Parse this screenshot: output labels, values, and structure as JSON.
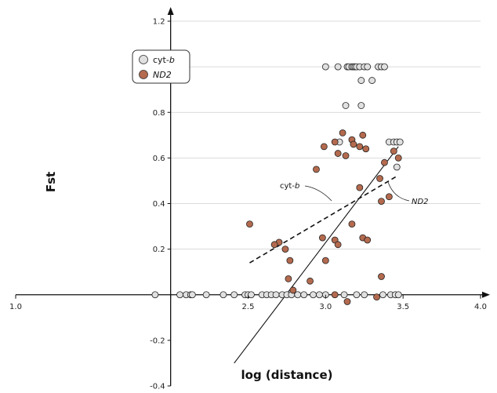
{
  "chart_data": {
    "type": "scatter",
    "xlabel": "log (distance)",
    "ylabel": "Fst",
    "xlim": [
      1.0,
      4.0
    ],
    "ylim": [
      -0.4,
      1.2
    ],
    "x_ticks": [
      "1.0",
      "2.5",
      "3.0",
      "3.5",
      "4.0"
    ],
    "x_ticks_minor": [
      "2.0"
    ],
    "y_ticks": [
      "-0.4",
      "-0.2",
      "0.2",
      "0.4",
      "0.6",
      "0.8",
      "1.0",
      "1.2"
    ],
    "grid": true,
    "legend_position": "top-left",
    "series": [
      {
        "name": "cyt-b",
        "italic_part": "b",
        "color": "#e0e0e0",
        "points": [
          [
            1.9,
            0
          ],
          [
            2.06,
            0
          ],
          [
            2.1,
            0
          ],
          [
            2.13,
            0
          ],
          [
            2.14,
            0
          ],
          [
            2.23,
            0
          ],
          [
            2.34,
            0
          ],
          [
            2.41,
            0
          ],
          [
            2.48,
            0
          ],
          [
            2.5,
            0
          ],
          [
            2.52,
            0
          ],
          [
            2.59,
            0
          ],
          [
            2.62,
            0
          ],
          [
            2.65,
            0
          ],
          [
            2.68,
            0
          ],
          [
            2.72,
            0
          ],
          [
            2.75,
            0
          ],
          [
            2.78,
            0
          ],
          [
            2.82,
            0
          ],
          [
            2.86,
            0
          ],
          [
            2.92,
            0
          ],
          [
            2.96,
            0
          ],
          [
            3.0,
            0
          ],
          [
            3.12,
            0
          ],
          [
            3.2,
            0
          ],
          [
            3.25,
            0
          ],
          [
            3.37,
            0
          ],
          [
            3.42,
            0
          ],
          [
            3.45,
            0
          ],
          [
            3.47,
            0
          ],
          [
            3.0,
            1.0
          ],
          [
            3.08,
            1.0
          ],
          [
            3.14,
            1.0
          ],
          [
            3.15,
            1.0
          ],
          [
            3.17,
            1.0
          ],
          [
            3.18,
            1.0
          ],
          [
            3.19,
            1.0
          ],
          [
            3.2,
            1.0
          ],
          [
            3.22,
            1.0
          ],
          [
            3.25,
            1.0
          ],
          [
            3.27,
            1.0
          ],
          [
            3.34,
            1.0
          ],
          [
            3.36,
            1.0
          ],
          [
            3.38,
            1.0
          ],
          [
            3.23,
            0.94
          ],
          [
            3.3,
            0.94
          ],
          [
            3.13,
            0.83
          ],
          [
            3.23,
            0.83
          ],
          [
            3.09,
            0.67
          ],
          [
            3.41,
            0.67
          ],
          [
            3.44,
            0.67
          ],
          [
            3.46,
            0.67
          ],
          [
            3.48,
            0.67
          ],
          [
            3.46,
            0.56
          ]
        ]
      },
      {
        "name": "ND2",
        "italic_part": "ND2",
        "color": "#b46a4e",
        "points": [
          [
            2.51,
            0.31
          ],
          [
            2.7,
            0.23
          ],
          [
            2.67,
            0.22
          ],
          [
            2.74,
            0.2
          ],
          [
            2.77,
            0.15
          ],
          [
            2.76,
            0.07
          ],
          [
            2.79,
            0.02
          ],
          [
            2.9,
            0.06
          ],
          [
            2.98,
            0.25
          ],
          [
            3.0,
            0.15
          ],
          [
            2.94,
            0.55
          ],
          [
            2.99,
            0.65
          ],
          [
            3.06,
            0.67
          ],
          [
            3.08,
            0.62
          ],
          [
            3.11,
            0.71
          ],
          [
            3.13,
            0.61
          ],
          [
            3.06,
            0.24
          ],
          [
            3.08,
            0.22
          ],
          [
            3.06,
            0.0
          ],
          [
            3.14,
            -0.03
          ],
          [
            3.17,
            0.31
          ],
          [
            3.17,
            0.68
          ],
          [
            3.18,
            0.66
          ],
          [
            3.22,
            0.65
          ],
          [
            3.24,
            0.7
          ],
          [
            3.26,
            0.64
          ],
          [
            3.22,
            0.47
          ],
          [
            3.24,
            0.25
          ],
          [
            3.27,
            0.24
          ],
          [
            3.33,
            -0.01
          ],
          [
            3.36,
            0.08
          ],
          [
            3.35,
            0.51
          ],
          [
            3.36,
            0.41
          ],
          [
            3.38,
            0.58
          ],
          [
            3.41,
            0.43
          ],
          [
            3.44,
            0.63
          ],
          [
            3.47,
            0.6
          ]
        ]
      }
    ],
    "fit_lines": [
      {
        "series": "cyt-b",
        "style": "solid",
        "from": [
          2.41,
          -0.3
        ],
        "to": [
          3.47,
          0.65
        ],
        "label": "cyt-b"
      },
      {
        "series": "ND2",
        "style": "dashed",
        "from": [
          2.51,
          0.14
        ],
        "to": [
          3.46,
          0.52
        ],
        "label": "ND2"
      }
    ]
  }
}
